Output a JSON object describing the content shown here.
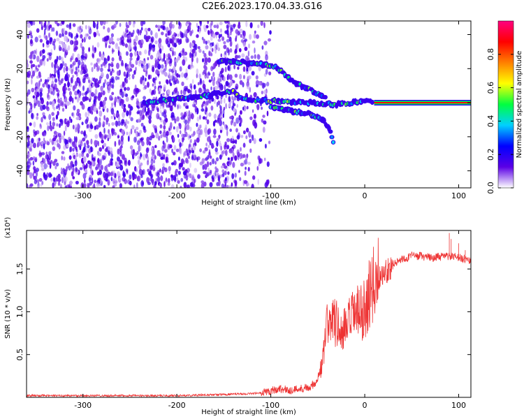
{
  "title": "C2E6.2023.170.04.33.G16",
  "chart_data": [
    {
      "type": "heatmap",
      "xlabel": "Height of straight line (km)",
      "ylabel": "Frequency (Hz)",
      "xlim": [
        -360,
        113
      ],
      "ylim": [
        -50,
        48
      ],
      "xticks": [
        -300,
        -200,
        -100,
        0,
        100
      ],
      "yticks": [
        -40,
        -20,
        0,
        20,
        40
      ],
      "colorbar": {
        "label": "Normalized spectral amplitude",
        "range": [
          0,
          1
        ],
        "ticks": [
          0.0,
          0.2,
          0.4,
          0.6,
          0.8
        ],
        "colormap": "rainbow",
        "colors": [
          "#ffffff",
          "#5b00e6",
          "#0000ff",
          "#00d0ff",
          "#00ff40",
          "#ffff00",
          "#ff8000",
          "#ff0000",
          "#ff0080"
        ]
      },
      "features": [
        {
          "name": "noise",
          "x_range": [
            -360,
            -120
          ],
          "y_range": [
            -50,
            48
          ],
          "amplitude": [
            0.0,
            0.15
          ]
        },
        {
          "name": "main-branch",
          "points": [
            [
              -235,
              0
            ],
            [
              -200,
              2
            ],
            [
              -170,
              4
            ],
            [
              -140,
              7
            ],
            [
              -130,
              2
            ],
            [
              -100,
              1
            ],
            [
              -60,
              0
            ],
            [
              -30,
              -1
            ],
            [
              0,
              1
            ],
            [
              10,
              0
            ]
          ]
        },
        {
          "name": "upper-branch",
          "points": [
            [
              -155,
              24
            ],
            [
              -130,
              24
            ],
            [
              -95,
              21
            ],
            [
              -75,
              12
            ],
            [
              -55,
              7
            ],
            [
              -40,
              2
            ]
          ]
        },
        {
          "name": "lower-branch",
          "points": [
            [
              -100,
              -3
            ],
            [
              -80,
              -5
            ],
            [
              -60,
              -6
            ],
            [
              -45,
              -10
            ],
            [
              -38,
              -15
            ],
            [
              -32,
              -25
            ]
          ]
        },
        {
          "name": "direct-signal",
          "x_range": [
            10,
            113
          ],
          "y": 0,
          "amplitude": 0.95
        }
      ]
    },
    {
      "type": "line",
      "xlabel": "Height of straight line (km)",
      "ylabel": "SNR (10 * v/v)",
      "multiplier_label": "(x10⁴)",
      "xlim": [
        -360,
        113
      ],
      "ylim": [
        0,
        1.95
      ],
      "xticks": [
        -300,
        -200,
        -100,
        0,
        100
      ],
      "yticks": [
        0.5,
        1.0,
        1.5
      ],
      "color": "#ee3333",
      "series": [
        {
          "x": [
            -360,
            -300,
            -250,
            -200,
            -160,
            -130,
            -110,
            -100,
            -90,
            -80,
            -70,
            -60,
            -55,
            -50,
            -45,
            -40,
            -35,
            -30,
            -25,
            -20,
            -15,
            -10,
            -5,
            0,
            5,
            10,
            20,
            30,
            40,
            50,
            60,
            70,
            80,
            90,
            100,
            113
          ],
          "y": [
            0.02,
            0.02,
            0.02,
            0.02,
            0.03,
            0.04,
            0.05,
            0.08,
            0.1,
            0.08,
            0.1,
            0.12,
            0.15,
            0.22,
            0.4,
            0.85,
            0.95,
            0.85,
            0.75,
            0.8,
            0.9,
            1.0,
            0.95,
            1.05,
            1.2,
            1.35,
            1.45,
            1.55,
            1.62,
            1.65,
            1.65,
            1.63,
            1.64,
            1.65,
            1.63,
            1.6
          ]
        }
      ]
    }
  ]
}
